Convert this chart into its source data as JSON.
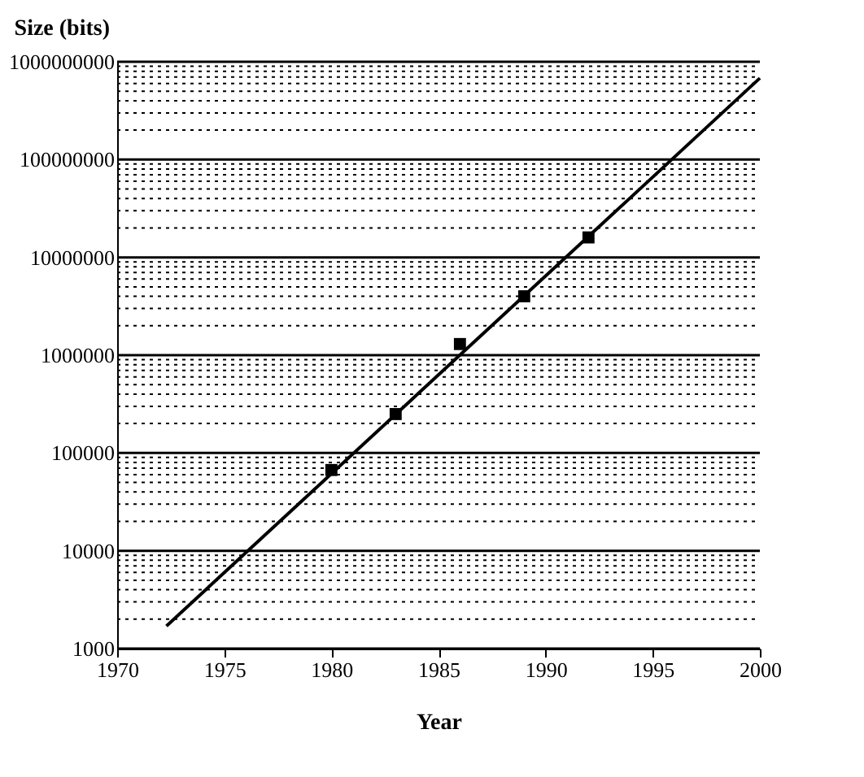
{
  "chart_data": {
    "type": "scatter",
    "xlabel": "Year",
    "ylabel": "Size (bits)",
    "log": "y",
    "grid": "y",
    "xlim": [
      1970,
      2000
    ],
    "xticks": [
      1970,
      1975,
      1980,
      1985,
      1990,
      1995,
      2000
    ],
    "ylim": [
      1000,
      1000000000
    ],
    "yticks": [
      1000,
      {
        "value": 2000,
        "label": null
      },
      {
        "value": 3000,
        "label": null
      },
      {
        "value": 4000,
        "label": null
      },
      {
        "value": 5000,
        "label": null
      },
      {
        "value": 6000,
        "label": null
      },
      {
        "value": 7000,
        "label": null
      },
      {
        "value": 8000,
        "label": null
      },
      {
        "value": 9000,
        "label": null
      },
      10000,
      {
        "value": 20000,
        "label": null
      },
      {
        "value": 30000,
        "label": null
      },
      {
        "value": 40000,
        "label": null
      },
      {
        "value": 50000,
        "label": null
      },
      {
        "value": 60000,
        "label": null
      },
      {
        "value": 70000,
        "label": null
      },
      {
        "value": 80000,
        "label": null
      },
      {
        "value": 90000,
        "label": null
      },
      100000,
      {
        "value": 200000,
        "label": null
      },
      {
        "value": 300000,
        "label": null
      },
      {
        "value": 400000,
        "label": null
      },
      {
        "value": 500000,
        "label": null
      },
      {
        "value": 600000,
        "label": null
      },
      {
        "value": 700000,
        "label": null
      },
      {
        "value": 800000,
        "label": null
      },
      {
        "value": 900000,
        "label": null
      },
      1000000,
      {
        "value": 2000000,
        "label": null
      },
      {
        "value": 3000000,
        "label": null
      },
      {
        "value": 4000000,
        "label": null
      },
      {
        "value": 5000000,
        "label": null
      },
      {
        "value": 6000000,
        "label": null
      },
      {
        "value": 7000000,
        "label": null
      },
      {
        "value": 8000000,
        "label": null
      },
      {
        "value": 9000000,
        "label": null
      },
      10000000,
      {
        "value": 20000000,
        "label": null
      },
      {
        "value": 30000000,
        "label": null
      },
      {
        "value": 40000000,
        "label": null
      },
      {
        "value": 50000000,
        "label": null
      },
      {
        "value": 60000000,
        "label": null
      },
      {
        "value": 70000000,
        "label": null
      },
      {
        "value": 80000000,
        "label": null
      },
      {
        "value": 90000000,
        "label": null
      },
      100000000,
      {
        "value": 200000000,
        "label": null
      },
      {
        "value": 300000000,
        "label": null
      },
      {
        "value": 400000000,
        "label": null
      },
      {
        "value": 500000000,
        "label": null
      },
      {
        "value": 600000000,
        "label": null
      },
      {
        "value": 700000000,
        "label": null
      },
      {
        "value": 800000000,
        "label": null
      },
      {
        "value": 900000000,
        "label": null
      },
      1000000000
    ],
    "series": [
      {
        "marker": "square",
        "color": "#000000",
        "x": [
          1980,
          1983,
          1986,
          1989,
          1992
        ],
        "values": [
          67000,
          250000,
          1300000,
          4000000,
          16000000
        ]
      },
      {
        "type": "line",
        "marker": "none",
        "line_style": "solid",
        "color": "#000000",
        "x": [
          1972.3,
          2000
        ],
        "values": [
          1700,
          680000000
        ]
      }
    ]
  }
}
